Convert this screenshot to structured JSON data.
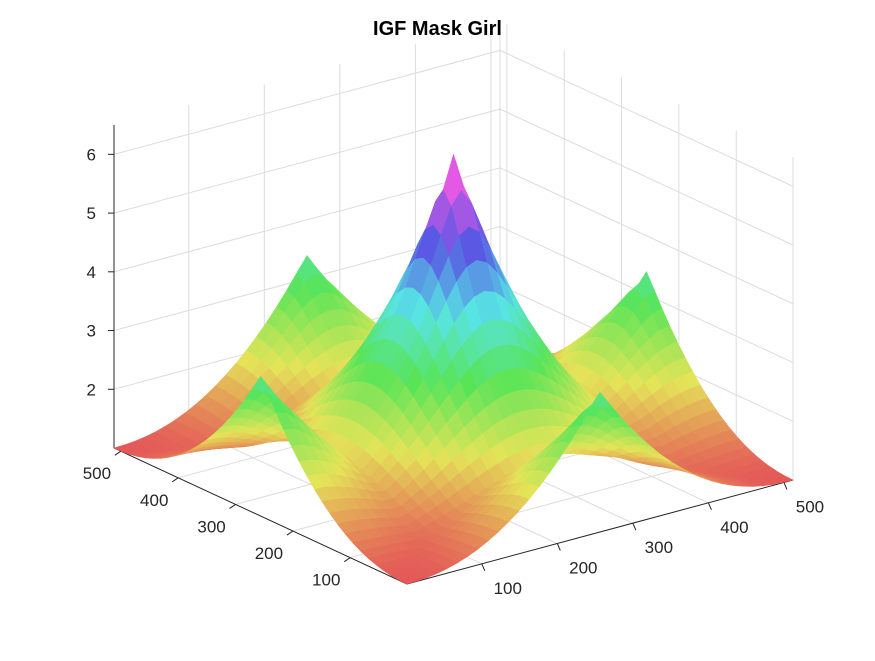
{
  "chart_data": {
    "type": "surface",
    "title": "IGF Mask Girl",
    "xlabel": "",
    "ylabel": "",
    "zlabel": "",
    "x_ticks": [
      100,
      200,
      300,
      400,
      500
    ],
    "y_ticks": [
      100,
      200,
      300,
      400,
      500
    ],
    "z_ticks": [
      2,
      3,
      4,
      5,
      6
    ],
    "xlim": [
      1,
      512
    ],
    "ylim": [
      1,
      512
    ],
    "zlim": [
      1,
      6.5
    ],
    "grid": true,
    "colormap": "hsv",
    "surface": {
      "center": [
        256,
        256
      ],
      "center_value": 6.3,
      "corner_value": 1.0,
      "edge_midpoint_value": 3.4
    }
  }
}
